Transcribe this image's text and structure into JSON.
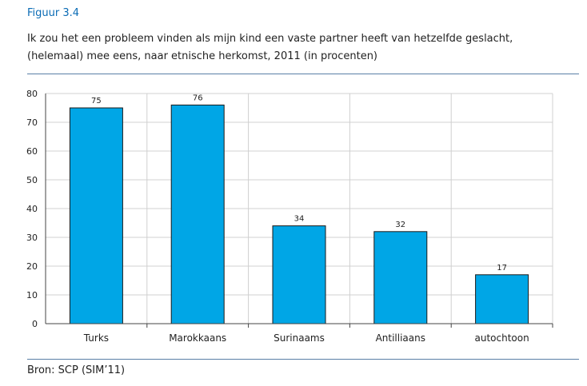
{
  "figure": {
    "label": "Figuur 3.4",
    "title_line1": "Ik zou het een probleem vinden als mijn kind een vaste partner heeft van hetzelfde geslacht,",
    "title_line2": "(helemaal) mee eens, naar etnische herkomst, 2011 (in procenten)",
    "source": "Bron: SCP (SIM’11)"
  },
  "colors": {
    "bar": "#00a6e6",
    "bar_stroke": "#1a1a1a",
    "grid": "#d0d0d0",
    "rule": "#5a7fa6",
    "label": "#0a6bb5"
  },
  "chart_data": {
    "type": "bar",
    "categories": [
      "Turks",
      "Marokkaans",
      "Surinaams",
      "Antilliaans",
      "autochtoon"
    ],
    "values": [
      75,
      76,
      34,
      32,
      17
    ],
    "data_labels": [
      "75",
      "76",
      "34",
      "32",
      "17"
    ],
    "ylim": [
      0,
      80
    ],
    "yticks": [
      "0",
      "10",
      "20",
      "30",
      "40",
      "50",
      "60",
      "70",
      "80"
    ],
    "grid": true,
    "xlabel": "",
    "ylabel": ""
  }
}
